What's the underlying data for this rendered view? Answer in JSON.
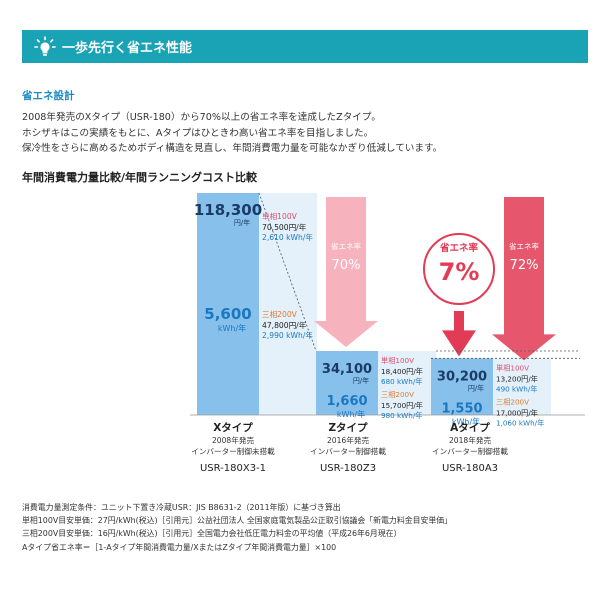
{
  "banner": {
    "title": "一歩先行く省エネ性能",
    "icon": "lightbulb-icon"
  },
  "section": {
    "label": "省エネ設計"
  },
  "description": [
    "2008年発売のXタイプ（USR-180）から70%以上の省エネ率を達成したZタイプ。",
    "ホシザキはこの実績をもとに、Aタイプはひときわ高い省エネ率を目指しました。",
    "保冷性をさらに高めるためボディ構造を見直し、年間消費電力量を可能なかぎり低減しています。"
  ],
  "chart_title": "年間消費電力量比較/年間ランニングコスト比較",
  "chart_data": {
    "type": "bar",
    "categories": [
      "Xタイプ",
      "Zタイプ",
      "Aタイプ"
    ],
    "series": [
      {
        "values": [
          118300,
          34100,
          30200
        ],
        "unit": "円/年"
      },
      {
        "values": [
          5600,
          1660,
          1550
        ],
        "unit": "kWh/年"
      }
    ],
    "value_labels": [
      {
        "yen": "118,300",
        "yen_unit": "円/年",
        "kwh": "5,600",
        "kwh_unit": "kWh/年"
      },
      {
        "yen": "34,100",
        "yen_unit": "円/年",
        "kwh": "1,660",
        "kwh_unit": "kWh/年"
      },
      {
        "yen": "30,200",
        "yen_unit": "円/年",
        "kwh": "1,550",
        "kwh_unit": "kWh/年"
      }
    ],
    "breakdown": [
      {
        "single": {
          "label": "単相100V",
          "yen": "70,500円/年",
          "kwh": "2,610 kWh/年"
        },
        "three": {
          "label": "三相200V",
          "yen": "47,800円/年",
          "kwh": "2,990 kWh/年"
        }
      },
      {
        "single": {
          "label": "単相100V",
          "yen": "18,400円/年",
          "kwh": "680 kWh/年"
        },
        "three": {
          "label": "三相200V",
          "yen": "15,700円/年",
          "kwh": "980 kWh/年"
        }
      },
      {
        "single": {
          "label": "単相100V",
          "yen": "13,200円/年",
          "kwh": "490 kWh/年"
        },
        "three": {
          "label": "三相200V",
          "yen": "17,000円/年",
          "kwh": "1,060 kWh/年"
        }
      }
    ],
    "savings": [
      {
        "label": "省エネ率",
        "value": "70%"
      },
      {
        "label": "省エネ率",
        "value": "72%"
      }
    ],
    "highlight": {
      "label": "省エネ率",
      "value": "7%"
    },
    "products": [
      {
        "name": "Xタイプ",
        "year": "2008年発売",
        "feature": "インバーター制御未搭載",
        "model": "USR-180X3-1"
      },
      {
        "name": "Zタイプ",
        "year": "2016年発売",
        "feature": "インバーター制御搭載",
        "model": "USR-180Z3"
      },
      {
        "name": "Aタイプ",
        "year": "2018年発売",
        "feature": "インバーター制御搭載",
        "model": "USR-180A3"
      }
    ],
    "colors": {
      "bar": "#87c0ea",
      "bar_text": "#1a78c2",
      "single_label": "#e0506f",
      "three_label": "#e07a30",
      "breakdown_bg": "#e4f1fb",
      "arrow_light": "#f7b3bd",
      "arrow_dark": "#e6566c",
      "highlight": "#e23b55"
    }
  },
  "notes": [
    "消費電力量測定条件：ユニット下置き冷蔵USR：JIS B8631-2（2011年版）に基づき算出",
    "単相100V目安単価：27円/kWh(税込)［引用元］公益社団法人 全国家庭電気製品公正取引協議会「新電力料金目安単価」",
    "三相200V目安単価：16円/kWh(税込)［引用元］全国電力会社低圧電力料金の平均値（平成26年6月現在）",
    "Aタイプ省エネ率＝［1-Aタイプ年間消費電力量/XまたはZタイプ年間消費電力量］×100"
  ]
}
